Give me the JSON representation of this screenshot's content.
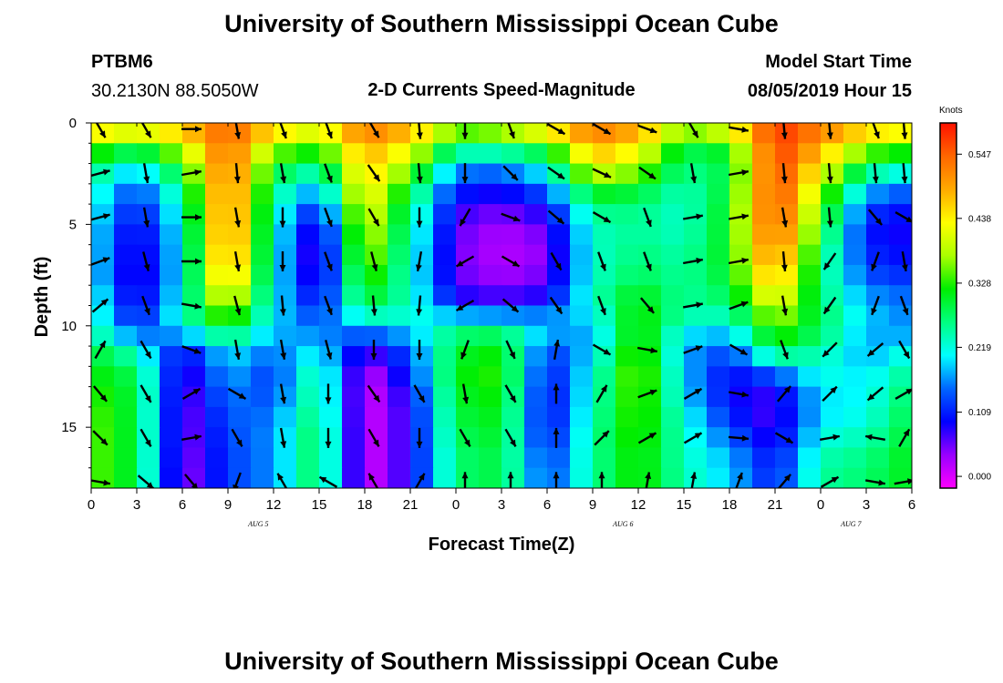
{
  "header": {
    "title": "University of Southern Mississippi Ocean Cube",
    "station": "PTBM6",
    "coords": "30.2130N 88.5050W",
    "subtitle": "2-D Currents Speed-Magnitude",
    "model_label": "Model Start Time",
    "model_time": "08/05/2019 Hour 15",
    "footer_title": "University of Southern Mississippi Ocean Cube"
  },
  "colorbar": {
    "units": "Knots",
    "ticks": [
      "0.547",
      "0.438",
      "0.328",
      "0.219",
      "0.109",
      "0.000"
    ],
    "colors": [
      "#ff00ff",
      "#9900ff",
      "#0000ff",
      "#0066ff",
      "#00ffff",
      "#00ff80",
      "#00ee00",
      "#aaff00",
      "#ffff00",
      "#ffaa00",
      "#ff6600",
      "#ff1100"
    ]
  },
  "chart_data": {
    "type": "heatmap",
    "title": "2-D Currents Speed-Magnitude",
    "xlabel": "Forecast Time(Z)",
    "ylabel": "Depth (ft)",
    "x_tick_labels": [
      "0",
      "3",
      "6",
      "9",
      "12",
      "15",
      "18",
      "21",
      "0",
      "3",
      "6",
      "9",
      "12",
      "15",
      "18",
      "21",
      "0",
      "3",
      "6"
    ],
    "y_tick_labels": [
      "0",
      "5",
      "10",
      "15"
    ],
    "x_range_hours": [
      0,
      54
    ],
    "y_range_ft": [
      0,
      18
    ],
    "date_labels": [
      {
        "hour": 11,
        "label": "AUG 5"
      },
      {
        "hour": 35,
        "label": "AUG 6"
      },
      {
        "hour": 50,
        "label": "AUG 7"
      }
    ],
    "colorbar_units": "Knots",
    "depths_ft": [
      0,
      1,
      2,
      3,
      4,
      5,
      6,
      7,
      8,
      9,
      10,
      11,
      12,
      13,
      14,
      15,
      16,
      17,
      18
    ],
    "time_hours": [
      0,
      3,
      6,
      9,
      12,
      15,
      18,
      21,
      24,
      27,
      30,
      33,
      36,
      39,
      42,
      45,
      48,
      51,
      54
    ],
    "speed_knots": [
      [
        0.5,
        0.48,
        0.5,
        0.55,
        0.5,
        0.45,
        0.55,
        0.5,
        0.4,
        0.44,
        0.5,
        0.55,
        0.52,
        0.42,
        0.48,
        0.58,
        0.54,
        0.5,
        0.48
      ],
      [
        0.38,
        0.34,
        0.42,
        0.55,
        0.4,
        0.36,
        0.5,
        0.45,
        0.3,
        0.3,
        0.35,
        0.5,
        0.45,
        0.3,
        0.33,
        0.58,
        0.5,
        0.4,
        0.38
      ],
      [
        0.3,
        0.22,
        0.34,
        0.55,
        0.32,
        0.28,
        0.48,
        0.38,
        0.2,
        0.2,
        0.25,
        0.45,
        0.4,
        0.28,
        0.3,
        0.58,
        0.45,
        0.3,
        0.26
      ],
      [
        0.25,
        0.16,
        0.28,
        0.55,
        0.28,
        0.2,
        0.46,
        0.32,
        0.14,
        0.12,
        0.18,
        0.35,
        0.32,
        0.25,
        0.3,
        0.58,
        0.4,
        0.22,
        0.18
      ],
      [
        0.24,
        0.12,
        0.25,
        0.55,
        0.25,
        0.14,
        0.44,
        0.28,
        0.1,
        0.08,
        0.12,
        0.28,
        0.28,
        0.24,
        0.32,
        0.58,
        0.36,
        0.15,
        0.12
      ],
      [
        0.22,
        0.1,
        0.23,
        0.55,
        0.24,
        0.08,
        0.42,
        0.26,
        0.08,
        0.05,
        0.08,
        0.25,
        0.26,
        0.24,
        0.32,
        0.57,
        0.33,
        0.12,
        0.1
      ],
      [
        0.22,
        0.08,
        0.22,
        0.54,
        0.23,
        0.06,
        0.4,
        0.25,
        0.07,
        0.04,
        0.06,
        0.24,
        0.27,
        0.25,
        0.32,
        0.55,
        0.3,
        0.12,
        0.1
      ],
      [
        0.22,
        0.08,
        0.22,
        0.52,
        0.23,
        0.06,
        0.38,
        0.24,
        0.07,
        0.04,
        0.06,
        0.24,
        0.28,
        0.26,
        0.32,
        0.52,
        0.28,
        0.14,
        0.12
      ],
      [
        0.22,
        0.07,
        0.22,
        0.48,
        0.22,
        0.08,
        0.34,
        0.24,
        0.08,
        0.06,
        0.08,
        0.24,
        0.3,
        0.26,
        0.3,
        0.48,
        0.28,
        0.16,
        0.14
      ],
      [
        0.26,
        0.1,
        0.24,
        0.4,
        0.22,
        0.12,
        0.3,
        0.25,
        0.12,
        0.1,
        0.12,
        0.25,
        0.34,
        0.26,
        0.28,
        0.42,
        0.28,
        0.2,
        0.18
      ],
      [
        0.24,
        0.12,
        0.24,
        0.34,
        0.2,
        0.16,
        0.2,
        0.22,
        0.26,
        0.26,
        0.22,
        0.18,
        0.34,
        0.24,
        0.22,
        0.36,
        0.3,
        0.2,
        0.16
      ],
      [
        0.3,
        0.22,
        0.12,
        0.22,
        0.18,
        0.2,
        0.1,
        0.16,
        0.3,
        0.32,
        0.14,
        0.2,
        0.36,
        0.18,
        0.16,
        0.32,
        0.26,
        0.18,
        0.22
      ],
      [
        0.32,
        0.28,
        0.08,
        0.2,
        0.14,
        0.26,
        0.04,
        0.14,
        0.32,
        0.34,
        0.12,
        0.22,
        0.38,
        0.2,
        0.12,
        0.2,
        0.24,
        0.2,
        0.26
      ],
      [
        0.34,
        0.3,
        0.07,
        0.18,
        0.14,
        0.28,
        0.02,
        0.12,
        0.32,
        0.34,
        0.1,
        0.24,
        0.38,
        0.2,
        0.1,
        0.1,
        0.22,
        0.22,
        0.28
      ],
      [
        0.35,
        0.3,
        0.06,
        0.16,
        0.16,
        0.28,
        0.02,
        0.1,
        0.3,
        0.32,
        0.1,
        0.24,
        0.36,
        0.22,
        0.12,
        0.08,
        0.2,
        0.22,
        0.3
      ],
      [
        0.36,
        0.3,
        0.06,
        0.15,
        0.18,
        0.3,
        0.02,
        0.1,
        0.3,
        0.32,
        0.1,
        0.26,
        0.36,
        0.24,
        0.14,
        0.08,
        0.22,
        0.24,
        0.3
      ],
      [
        0.36,
        0.3,
        0.06,
        0.14,
        0.18,
        0.3,
        0.02,
        0.1,
        0.28,
        0.3,
        0.12,
        0.26,
        0.34,
        0.24,
        0.18,
        0.1,
        0.24,
        0.26,
        0.32
      ],
      [
        0.36,
        0.3,
        0.05,
        0.14,
        0.18,
        0.3,
        0.02,
        0.1,
        0.28,
        0.3,
        0.14,
        0.26,
        0.34,
        0.25,
        0.2,
        0.12,
        0.26,
        0.28,
        0.32
      ],
      [
        0.36,
        0.3,
        0.05,
        0.14,
        0.18,
        0.3,
        0.02,
        0.1,
        0.28,
        0.3,
        0.14,
        0.26,
        0.34,
        0.25,
        0.2,
        0.12,
        0.26,
        0.28,
        0.32
      ]
    ],
    "vector_direction_deg": [
      [
        150,
        150,
        90,
        170,
        160,
        160,
        150,
        175,
        180,
        160,
        120,
        120,
        110,
        150,
        100,
        175,
        175,
        160,
        175
      ],
      [
        75,
        170,
        80,
        175,
        170,
        160,
        145,
        175,
        180,
        135,
        125,
        115,
        125,
        170,
        80,
        175,
        175,
        175,
        175
      ],
      [
        75,
        170,
        90,
        170,
        180,
        160,
        150,
        180,
        210,
        110,
        130,
        120,
        160,
        80,
        80,
        170,
        175,
        140,
        120
      ],
      [
        70,
        165,
        90,
        170,
        180,
        160,
        165,
        190,
        240,
        120,
        150,
        160,
        160,
        80,
        80,
        175,
        215,
        200,
        170
      ],
      [
        50,
        160,
        100,
        165,
        175,
        160,
        175,
        185,
        240,
        130,
        145,
        160,
        140,
        80,
        70,
        170,
        215,
        200,
        160
      ],
      [
        30,
        150,
        110,
        170,
        170,
        165,
        180,
        180,
        200,
        155,
        10,
        120,
        100,
        70,
        120,
        160,
        225,
        230,
        150
      ],
      [
        140,
        150,
        60,
        120,
        170,
        180,
        145,
        150,
        170,
        150,
        0,
        30,
        70,
        60,
        100,
        40,
        45,
        230,
        60
      ],
      [
        135,
        150,
        80,
        150,
        170,
        180,
        150,
        180,
        150,
        150,
        0,
        45,
        60,
        60,
        95,
        120,
        80,
        280,
        30
      ],
      [
        100,
        130,
        140,
        200,
        330,
        300,
        330,
        30,
        0,
        0,
        0,
        0,
        10,
        10,
        20,
        40,
        60,
        100,
        80
      ]
    ]
  }
}
